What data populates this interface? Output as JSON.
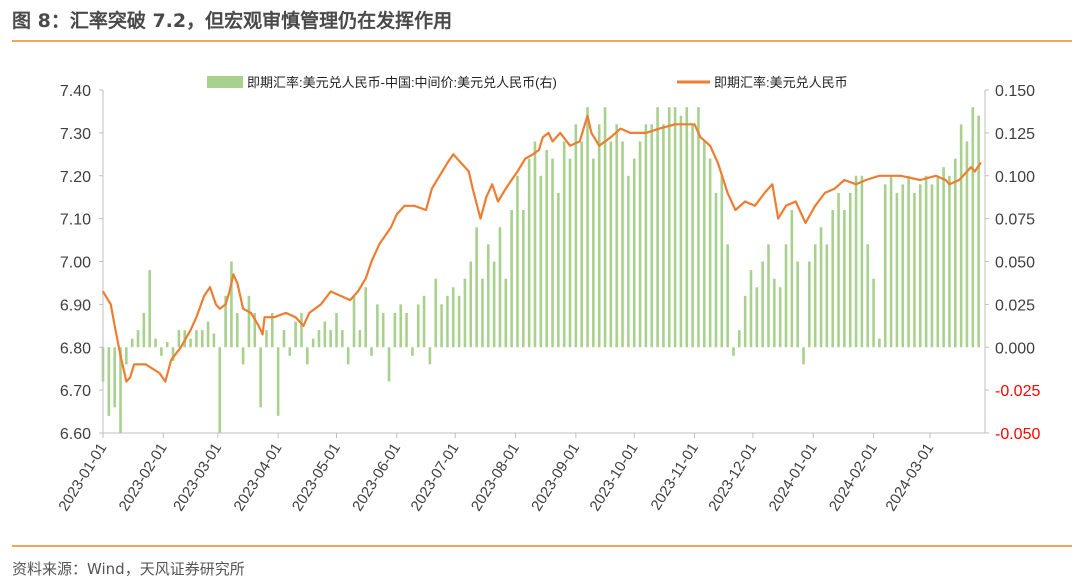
{
  "title": "图 8：汇率突破 7.2，但宏观审慎管理仍在发挥作用",
  "source": "资料来源：Wind，天风证券研究所",
  "chart_data": {
    "type": "bar+line",
    "legend_placement": "top-center",
    "legend": [
      "即期汇率:美元兑人民币-中国:中间价:美元兑人民币(右)",
      "即期汇率:美元兑人民币"
    ],
    "colors": {
      "bar": "#a9d18e",
      "line": "#ed7d31",
      "right_negative_label": "#ff0000",
      "axis_label": "#404040"
    },
    "x_tick_labels": [
      "2023-01-01",
      "2023-02-01",
      "2023-03-01",
      "2023-04-01",
      "2023-05-01",
      "2023-06-01",
      "2023-07-01",
      "2023-08-01",
      "2023-09-01",
      "2023-10-01",
      "2023-11-01",
      "2023-12-01",
      "2024-01-01",
      "2024-02-01",
      "2024-03-01"
    ],
    "x_tick_days": [
      0,
      31,
      59,
      90,
      120,
      151,
      181,
      212,
      243,
      273,
      304,
      334,
      365,
      396,
      425
    ],
    "x_range_days": [
      0,
      453
    ],
    "left_axis": {
      "ylim": [
        6.6,
        7.4
      ],
      "ticks": [
        "7.40",
        "7.30",
        "7.20",
        "7.10",
        "7.00",
        "6.90",
        "6.80",
        "6.70",
        "6.60"
      ]
    },
    "right_axis": {
      "ylim": [
        -0.05,
        0.15
      ],
      "ticks": [
        "0.150",
        "0.125",
        "0.100",
        "0.075",
        "0.050",
        "0.025",
        "0.000",
        "-0.025",
        "-0.050"
      ]
    },
    "line_series": {
      "name": "即期汇率:美元兑人民币",
      "day": [
        0,
        4,
        6,
        9,
        12,
        14,
        16,
        22,
        29,
        32,
        35,
        40,
        45,
        48,
        52,
        55,
        58,
        60,
        63,
        65,
        67,
        69,
        72,
        76,
        80,
        82,
        83,
        88,
        94,
        99,
        103,
        106,
        112,
        117,
        122,
        127,
        131,
        135,
        138,
        142,
        148,
        151,
        155,
        160,
        166,
        169,
        173,
        177,
        180,
        184,
        188,
        190,
        194,
        197,
        200,
        203,
        207,
        210,
        213,
        217,
        221,
        224,
        226,
        229,
        231,
        235,
        240,
        245,
        249,
        251,
        255,
        261,
        266,
        271,
        279,
        286,
        294,
        304,
        307,
        312,
        316,
        321,
        325,
        330,
        335,
        340,
        344,
        347,
        351,
        356,
        361,
        366,
        371,
        376,
        381,
        387,
        392,
        399,
        410,
        420,
        428,
        433,
        435,
        440,
        446,
        448,
        451
      ],
      "values": [
        6.93,
        6.9,
        6.85,
        6.78,
        6.72,
        6.73,
        6.76,
        6.76,
        6.74,
        6.72,
        6.77,
        6.8,
        6.84,
        6.87,
        6.92,
        6.94,
        6.9,
        6.89,
        6.9,
        6.93,
        6.97,
        6.95,
        6.89,
        6.88,
        6.85,
        6.83,
        6.87,
        6.87,
        6.88,
        6.87,
        6.85,
        6.88,
        6.9,
        6.93,
        6.92,
        6.91,
        6.93,
        6.96,
        7.0,
        7.04,
        7.08,
        7.11,
        7.13,
        7.13,
        7.12,
        7.17,
        7.2,
        7.23,
        7.25,
        7.23,
        7.21,
        7.17,
        7.1,
        7.15,
        7.18,
        7.14,
        7.17,
        7.19,
        7.21,
        7.24,
        7.25,
        7.26,
        7.29,
        7.3,
        7.28,
        7.3,
        7.27,
        7.28,
        7.34,
        7.3,
        7.27,
        7.29,
        7.31,
        7.3,
        7.3,
        7.31,
        7.32,
        7.32,
        7.29,
        7.27,
        7.23,
        7.16,
        7.12,
        7.14,
        7.13,
        7.16,
        7.18,
        7.1,
        7.13,
        7.14,
        7.09,
        7.13,
        7.16,
        7.17,
        7.19,
        7.18,
        7.19,
        7.2,
        7.2,
        7.19,
        7.2,
        7.19,
        7.18,
        7.19,
        7.22,
        7.21,
        7.23
      ]
    },
    "bar_series": {
      "name": "即期汇率:美元兑人民币-中国:中间价:美元兑人民币(右)",
      "day_step": 3,
      "values": [
        -0.02,
        -0.04,
        -0.035,
        -0.05,
        -0.01,
        0.005,
        0.01,
        0.02,
        0.045,
        0.005,
        -0.005,
        0.003,
        -0.008,
        0.01,
        0.01,
        0.005,
        0.01,
        0.01,
        0.015,
        0.008,
        -0.05,
        0.03,
        0.05,
        0.02,
        -0.01,
        0.03,
        0.02,
        -0.035,
        0.01,
        0.02,
        -0.04,
        0.01,
        -0.005,
        0.015,
        0.02,
        -0.01,
        0.005,
        0.01,
        0.015,
        0.01,
        0.02,
        0.01,
        -0.01,
        0.03,
        0.01,
        0.035,
        -0.005,
        0.025,
        0.02,
        -0.02,
        0.02,
        0.025,
        0.02,
        -0.005,
        0.025,
        0.03,
        -0.01,
        0.04,
        0.025,
        0.03,
        0.035,
        0.03,
        0.04,
        0.05,
        0.07,
        0.04,
        0.06,
        0.05,
        0.07,
        0.04,
        0.08,
        0.1,
        0.08,
        0.11,
        0.12,
        0.1,
        0.115,
        0.11,
        0.09,
        0.12,
        0.11,
        0.13,
        0.12,
        0.14,
        0.11,
        0.13,
        0.14,
        0.12,
        0.13,
        0.12,
        0.1,
        0.11,
        0.12,
        0.13,
        0.13,
        0.14,
        0.13,
        0.14,
        0.14,
        0.135,
        0.14,
        0.13,
        0.14,
        0.12,
        0.11,
        0.09,
        0.1,
        0.06,
        -0.005,
        0.01,
        0.03,
        0.045,
        0.035,
        0.05,
        0.06,
        0.04,
        0.035,
        0.06,
        0.08,
        0.05,
        -0.01,
        0.05,
        0.06,
        0.07,
        0.06,
        0.08,
        0.09,
        0.08,
        0.09,
        0.1,
        0.1,
        0.06,
        0.04,
        0.005,
        0.095,
        0.1,
        0.09,
        0.095,
        0.1,
        0.09,
        0.095,
        0.1,
        0.095,
        0.1,
        0.105,
        0.1,
        0.11,
        0.13,
        0.12,
        0.14,
        0.135
      ]
    }
  }
}
